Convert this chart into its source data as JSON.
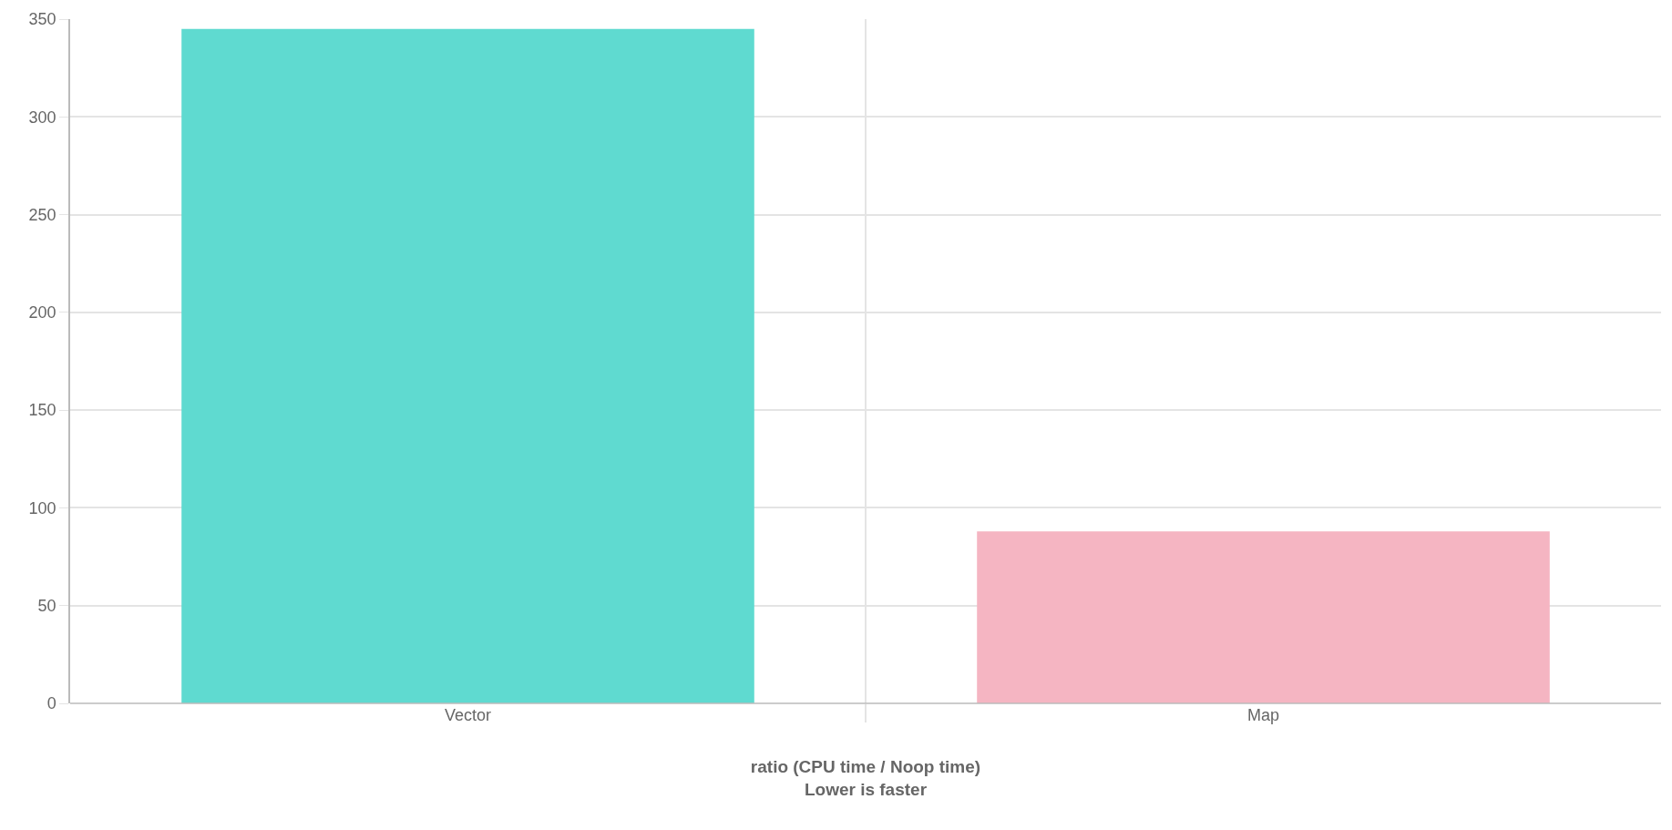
{
  "chart_data": {
    "type": "bar",
    "xlabel": "ratio (CPU time / Noop time)\nLower is faster",
    "categories": [
      "Vector",
      "Map"
    ],
    "values": [
      345,
      88
    ],
    "colors": [
      "#5fdad0",
      "#f5b5c2"
    ],
    "ylim": [
      0,
      350
    ],
    "yticks": [
      0,
      50,
      100,
      150,
      200,
      250,
      300,
      350
    ],
    "grid": true
  }
}
